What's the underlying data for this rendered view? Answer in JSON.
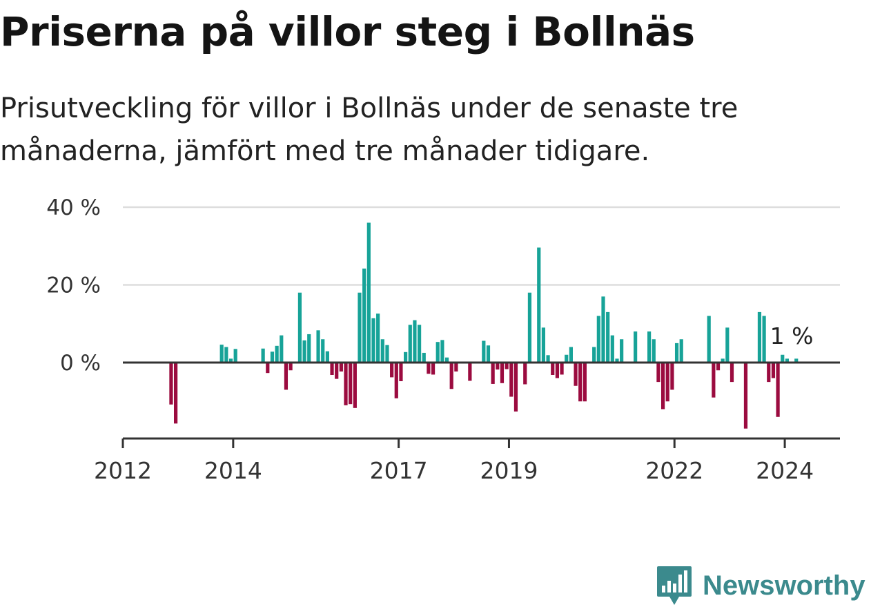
{
  "title": "Priserna på villor steg i Bollnäs",
  "subtitle": "Prisutveckling för villor i Bollnäs under de senaste tre månaderna, jämfört med tre månader tidigare.",
  "brand": {
    "name": "Newsworthy",
    "icon": "newsworthy-logo-icon",
    "color": "#3b8a8d"
  },
  "colors": {
    "positive": "#17a398",
    "negative": "#9b0b3f",
    "grid": "#dddddd",
    "axis": "#333333",
    "text": "#333333"
  },
  "chart_data": {
    "type": "bar",
    "y_ticks": [
      {
        "value": 40,
        "label": "40 %"
      },
      {
        "value": 20,
        "label": "20 %"
      },
      {
        "value": 0,
        "label": "0 %"
      }
    ],
    "ylim": [
      -20,
      40
    ],
    "xlim": [
      "2012-01",
      "2024-12"
    ],
    "x_ticks": [
      {
        "date": "2012-01",
        "label": "2012"
      },
      {
        "date": "2014-01",
        "label": "2014"
      },
      {
        "date": "2017-01",
        "label": "2017"
      },
      {
        "date": "2019-01",
        "label": "2019"
      },
      {
        "date": "2022-01",
        "label": "2022"
      },
      {
        "date": "2024-01",
        "label": "2024"
      }
    ],
    "annotation": {
      "label": "1 %",
      "date": "2024-02"
    },
    "grid": true,
    "series": [
      {
        "points": [
          {
            "date": "2012-11",
            "value": -10.8
          },
          {
            "date": "2012-12",
            "value": -15.7
          },
          {
            "date": "2013-10",
            "value": 4.6
          },
          {
            "date": "2013-11",
            "value": 4.0
          },
          {
            "date": "2013-12",
            "value": 1.0
          },
          {
            "date": "2014-01",
            "value": 3.5
          },
          {
            "date": "2014-07",
            "value": 3.6
          },
          {
            "date": "2014-08",
            "value": -2.7
          },
          {
            "date": "2014-09",
            "value": 2.8
          },
          {
            "date": "2014-10",
            "value": 4.3
          },
          {
            "date": "2014-11",
            "value": 7.0
          },
          {
            "date": "2014-12",
            "value": -7.0
          },
          {
            "date": "2015-01",
            "value": -2.0
          },
          {
            "date": "2015-03",
            "value": 18.0
          },
          {
            "date": "2015-04",
            "value": 5.7
          },
          {
            "date": "2015-05",
            "value": 7.3
          },
          {
            "date": "2015-07",
            "value": 8.3
          },
          {
            "date": "2015-08",
            "value": 6.0
          },
          {
            "date": "2015-09",
            "value": 2.9
          },
          {
            "date": "2015-10",
            "value": -3.2
          },
          {
            "date": "2015-11",
            "value": -4.2
          },
          {
            "date": "2015-12",
            "value": -2.3
          },
          {
            "date": "2016-01",
            "value": -11.0
          },
          {
            "date": "2016-02",
            "value": -10.7
          },
          {
            "date": "2016-03",
            "value": -11.7
          },
          {
            "date": "2016-04",
            "value": 18.0
          },
          {
            "date": "2016-05",
            "value": 24.2
          },
          {
            "date": "2016-06",
            "value": 36.0
          },
          {
            "date": "2016-07",
            "value": 11.4
          },
          {
            "date": "2016-08",
            "value": 12.6
          },
          {
            "date": "2016-09",
            "value": 6.0
          },
          {
            "date": "2016-10",
            "value": 4.5
          },
          {
            "date": "2016-11",
            "value": -3.8
          },
          {
            "date": "2016-12",
            "value": -9.2
          },
          {
            "date": "2017-01",
            "value": -4.8
          },
          {
            "date": "2017-02",
            "value": 2.7
          },
          {
            "date": "2017-03",
            "value": 9.7
          },
          {
            "date": "2017-04",
            "value": 10.9
          },
          {
            "date": "2017-05",
            "value": 9.7
          },
          {
            "date": "2017-06",
            "value": 2.5
          },
          {
            "date": "2017-07",
            "value": -2.9
          },
          {
            "date": "2017-08",
            "value": -3.1
          },
          {
            "date": "2017-09",
            "value": 5.3
          },
          {
            "date": "2017-10",
            "value": 5.8
          },
          {
            "date": "2017-11",
            "value": 1.3
          },
          {
            "date": "2017-12",
            "value": -6.8
          },
          {
            "date": "2018-01",
            "value": -2.3
          },
          {
            "date": "2018-04",
            "value": -4.7
          },
          {
            "date": "2018-07",
            "value": 5.6
          },
          {
            "date": "2018-08",
            "value": 4.4
          },
          {
            "date": "2018-09",
            "value": -5.5
          },
          {
            "date": "2018-10",
            "value": -1.8
          },
          {
            "date": "2018-11",
            "value": -5.3
          },
          {
            "date": "2018-12",
            "value": -1.7
          },
          {
            "date": "2019-01",
            "value": -8.8
          },
          {
            "date": "2019-02",
            "value": -12.6
          },
          {
            "date": "2019-04",
            "value": -5.6
          },
          {
            "date": "2019-05",
            "value": 18.0
          },
          {
            "date": "2019-07",
            "value": 29.6
          },
          {
            "date": "2019-08",
            "value": 9.0
          },
          {
            "date": "2019-09",
            "value": 1.9
          },
          {
            "date": "2019-10",
            "value": -3.2
          },
          {
            "date": "2019-11",
            "value": -4.0
          },
          {
            "date": "2019-12",
            "value": -3.1
          },
          {
            "date": "2020-01",
            "value": 2.0
          },
          {
            "date": "2020-02",
            "value": 4.0
          },
          {
            "date": "2020-03",
            "value": -6.0
          },
          {
            "date": "2020-04",
            "value": -10.0
          },
          {
            "date": "2020-05",
            "value": -10.0
          },
          {
            "date": "2020-07",
            "value": 4.0
          },
          {
            "date": "2020-08",
            "value": 12.0
          },
          {
            "date": "2020-09",
            "value": 17.0
          },
          {
            "date": "2020-10",
            "value": 13.0
          },
          {
            "date": "2020-11",
            "value": 7.0
          },
          {
            "date": "2020-12",
            "value": 1.0
          },
          {
            "date": "2021-01",
            "value": 6.0
          },
          {
            "date": "2021-04",
            "value": 8.0
          },
          {
            "date": "2021-07",
            "value": 8.0
          },
          {
            "date": "2021-08",
            "value": 6.0
          },
          {
            "date": "2021-09",
            "value": -5.0
          },
          {
            "date": "2021-10",
            "value": -12.0
          },
          {
            "date": "2021-11",
            "value": -10.0
          },
          {
            "date": "2021-12",
            "value": -7.0
          },
          {
            "date": "2022-01",
            "value": 5.0
          },
          {
            "date": "2022-02",
            "value": 6.0
          },
          {
            "date": "2022-08",
            "value": 12.0
          },
          {
            "date": "2022-09",
            "value": -9.0
          },
          {
            "date": "2022-10",
            "value": -2.0
          },
          {
            "date": "2022-11",
            "value": 1.0
          },
          {
            "date": "2022-12",
            "value": 9.0
          },
          {
            "date": "2023-01",
            "value": -5.0
          },
          {
            "date": "2023-04",
            "value": -17.0
          },
          {
            "date": "2023-07",
            "value": 13.0
          },
          {
            "date": "2023-08",
            "value": 12.0
          },
          {
            "date": "2023-09",
            "value": -5.0
          },
          {
            "date": "2023-10",
            "value": -4.0
          },
          {
            "date": "2023-11",
            "value": -14.0
          },
          {
            "date": "2023-12",
            "value": 2.0
          },
          {
            "date": "2024-01",
            "value": 1.0
          },
          {
            "date": "2024-03",
            "value": 1.0
          }
        ]
      }
    ]
  }
}
